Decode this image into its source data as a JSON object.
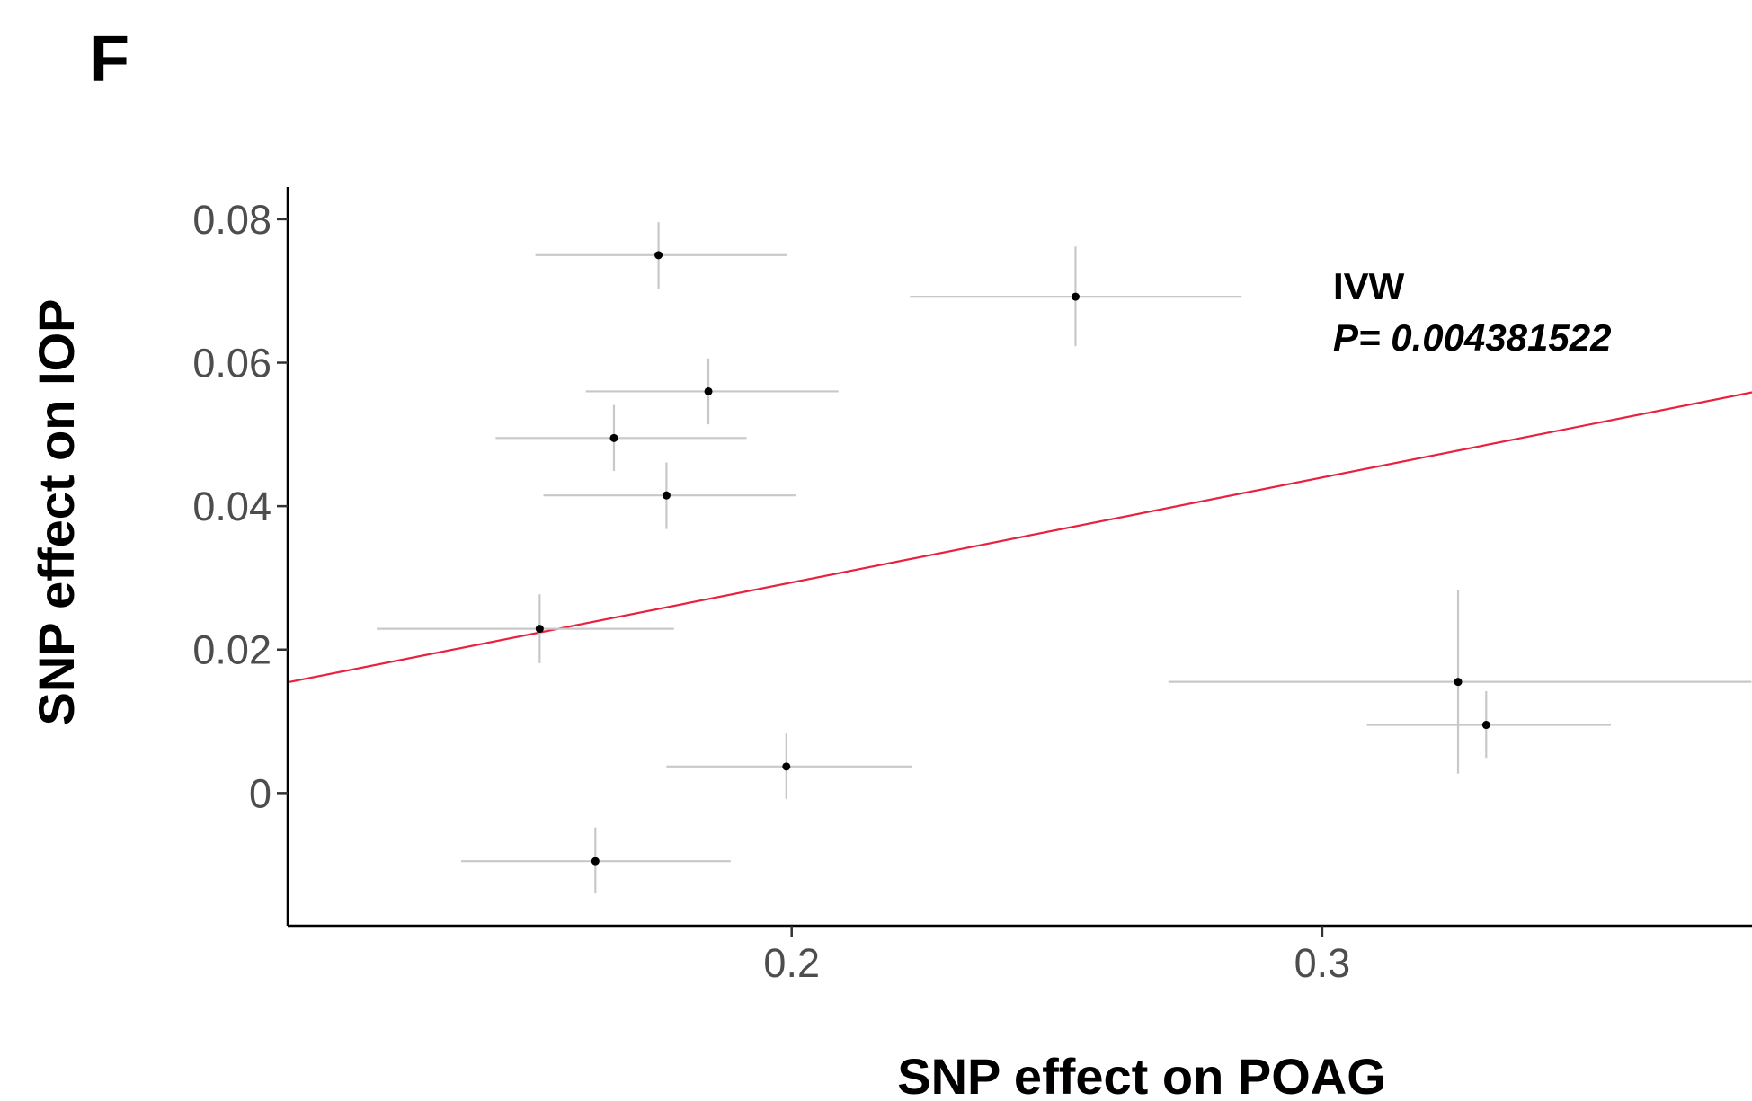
{
  "panel_label": "F",
  "chart_data": {
    "type": "scatter",
    "title": "",
    "xlabel": "SNP effect on  POAG",
    "ylabel": "SNP effect on  IOP",
    "xlim": [
      0.105,
      0.381
    ],
    "ylim": [
      -0.0185,
      0.0845
    ],
    "x_ticks": [
      {
        "value": 0.2,
        "label": "0.2"
      },
      {
        "value": 0.3,
        "label": "0.3"
      }
    ],
    "y_ticks": [
      {
        "value": 0,
        "label": "0"
      },
      {
        "value": 0.02,
        "label": "0.02"
      },
      {
        "value": 0.04,
        "label": "0.04"
      },
      {
        "value": 0.06,
        "label": "0.06"
      },
      {
        "value": 0.08,
        "label": "0.08"
      }
    ],
    "grid": false,
    "points": [
      {
        "x": 0.1749,
        "y": 0.075,
        "x_low": 0.1517,
        "x_high": 0.1992,
        "y_low": 0.0703,
        "y_high": 0.0796
      },
      {
        "x": 0.2535,
        "y": 0.0692,
        "x_low": 0.2223,
        "x_high": 0.2848,
        "y_low": 0.0623,
        "y_high": 0.0762
      },
      {
        "x": 0.1843,
        "y": 0.056,
        "x_low": 0.1612,
        "x_high": 0.2088,
        "y_low": 0.0514,
        "y_high": 0.0606
      },
      {
        "x": 0.1665,
        "y": 0.0495,
        "x_low": 0.1442,
        "x_high": 0.1915,
        "y_low": 0.0449,
        "y_high": 0.0541
      },
      {
        "x": 0.1764,
        "y": 0.0415,
        "x_low": 0.1532,
        "x_high": 0.2009,
        "y_low": 0.0368,
        "y_high": 0.0461
      },
      {
        "x": 0.1525,
        "y": 0.0229,
        "x_low": 0.1218,
        "x_high": 0.1778,
        "y_low": 0.0181,
        "y_high": 0.0277
      },
      {
        "x": 0.3256,
        "y": 0.0155,
        "x_low": 0.271,
        "x_high": 0.3809,
        "y_low": 0.0027,
        "y_high": 0.0283
      },
      {
        "x": 0.3309,
        "y": 0.0095,
        "x_low": 0.3084,
        "x_high": 0.3544,
        "y_low": 0.0049,
        "y_high": 0.0142
      },
      {
        "x": 0.199,
        "y": 0.0037,
        "x_low": 0.1764,
        "x_high": 0.2227,
        "y_low": -0.0008,
        "y_high": 0.0083
      },
      {
        "x": 0.163,
        "y": -0.0095,
        "x_low": 0.1377,
        "x_high": 0.1885,
        "y_low": -0.014,
        "y_high": -0.0048
      }
    ],
    "fit_line": {
      "method": "IVW",
      "slope": 0.1465,
      "intercept": 5e-05,
      "color": "#e8213e"
    },
    "annotation": {
      "title": "IVW",
      "p_text": "P= 0.004381522"
    },
    "colors": {
      "points": "#000000",
      "error_bars": "#c8c8c8",
      "axis": "#000000"
    }
  }
}
